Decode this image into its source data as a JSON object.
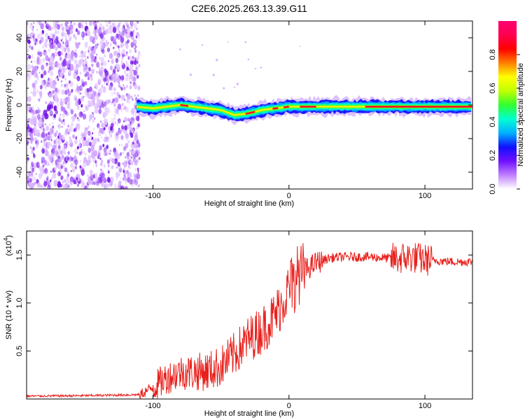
{
  "title": "C2E6.2025.263.13.39.G11",
  "chart_data": [
    {
      "type": "heatmap",
      "xlabel": "Height of straight line (km)",
      "ylabel": "Frequency (Hz)",
      "xlim": [
        -193,
        135
      ],
      "ylim": [
        -50,
        50
      ],
      "xticks": [
        -100,
        0,
        100
      ],
      "xtick_labels": [
        "-100",
        "0",
        "100"
      ],
      "yticks": [
        -40,
        -20,
        0,
        20,
        40
      ],
      "ytick_labels": [
        "-40",
        "-20",
        "0",
        "20",
        "40"
      ],
      "colorbar": {
        "label": "Normalized spectral amplitude",
        "range": [
          0,
          1
        ],
        "ticks": [
          0.0,
          0.2,
          0.4,
          0.6,
          0.8
        ],
        "tick_labels": [
          "0.0",
          "0.2",
          "0.4",
          "0.6",
          "0.8"
        ],
        "colors": [
          "#ffffff",
          "#c080ff",
          "#7010ff",
          "#1010ff",
          "#00b0ff",
          "#00ffd0",
          "#30ff30",
          "#c0ff00",
          "#ffff00",
          "#ff8000",
          "#ff0000",
          "#ff0050",
          "#ff0070"
        ]
      },
      "noise_region_x": [
        -193,
        -110
      ],
      "ridge": {
        "x": [
          -112,
          -100,
          -90,
          -80,
          -70,
          -60,
          -50,
          -40,
          -30,
          -20,
          -10,
          0,
          10,
          30,
          60,
          90,
          135
        ],
        "freq": [
          -1,
          -2,
          -1,
          0,
          -1,
          -2,
          -3,
          -6,
          -5,
          -3,
          -2,
          -1,
          -1,
          -1,
          -1,
          -1,
          -1
        ]
      }
    },
    {
      "type": "line",
      "xlabel": "Height of straight line (km)",
      "ylabel": "SNR (10 * v/v)",
      "scale_label": "(x10",
      "scale_exp": "4",
      "xlim": [
        -193,
        135
      ],
      "ylim": [
        0,
        17500
      ],
      "xticks": [
        -100,
        0,
        100
      ],
      "xtick_labels": [
        "-100",
        "0",
        "100"
      ],
      "yticks": [
        5000,
        10000,
        15000
      ],
      "ytick_labels": [
        "0.5",
        "1.0",
        "1.5"
      ],
      "series": [
        {
          "name": "SNR",
          "color": "#e8201c",
          "x": [
            -193,
            -150,
            -110,
            -100,
            -90,
            -80,
            -70,
            -60,
            -50,
            -40,
            -30,
            -20,
            -10,
            0,
            5,
            10,
            20,
            30,
            40,
            60,
            80,
            90,
            100,
            120,
            135
          ],
          "values": [
            300,
            350,
            450,
            1200,
            2200,
            2800,
            2800,
            2900,
            3400,
            4700,
            6200,
            7200,
            8700,
            11500,
            12800,
            13200,
            14200,
            14700,
            14800,
            14800,
            14600,
            14800,
            14500,
            14300,
            14300
          ]
        }
      ]
    }
  ]
}
